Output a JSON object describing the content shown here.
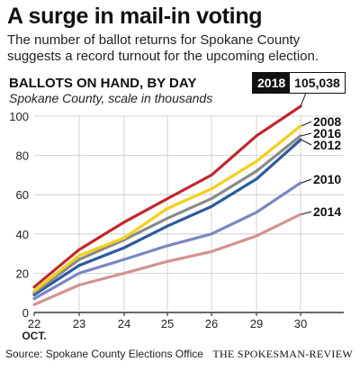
{
  "title": "A surge in mail-in voting",
  "subtitle": "The number of ballot returns for Spokane County suggests a record turnout for the upcoming election.",
  "chart_heading": "BALLOTS ON HAND, BY DAY",
  "chart_subheading": "Spokane County, scale in thousands",
  "callout": {
    "year": "2018",
    "value": "105,038"
  },
  "source": "Source: Spokane County Elections Office",
  "brand": "THE SPOKESMAN-REVIEW",
  "chart_data": {
    "type": "line",
    "title": "BALLOTS ON HAND, BY DAY",
    "subtitle": "Spokane County, scale in thousands",
    "x": [
      "22",
      "23",
      "24",
      "25",
      "26",
      "29",
      "30"
    ],
    "x_month_label": "OCT.",
    "ylim": [
      0,
      100
    ],
    "yticks": [
      0,
      20,
      40,
      60,
      80,
      100
    ],
    "grid": true,
    "series": [
      {
        "name": "2018",
        "color": "#c1272d",
        "values": [
          13,
          32,
          46,
          58,
          70,
          90,
          105
        ]
      },
      {
        "name": "2008",
        "color": "#f4d01a",
        "values": [
          11,
          29,
          38,
          53,
          63,
          77,
          95
        ]
      },
      {
        "name": "2016",
        "color": "#8a8a8a",
        "values": [
          10,
          27,
          37,
          48,
          58,
          72,
          90
        ]
      },
      {
        "name": "2012",
        "color": "#2c5aa0",
        "values": [
          9,
          24,
          33,
          44,
          54,
          68,
          88
        ]
      },
      {
        "name": "2010",
        "color": "#7b86c4",
        "values": [
          7,
          20,
          27,
          34,
          40,
          51,
          66
        ]
      },
      {
        "name": "2014",
        "color": "#d49191",
        "values": [
          4,
          14,
          20,
          26,
          31,
          39,
          50
        ]
      }
    ]
  }
}
